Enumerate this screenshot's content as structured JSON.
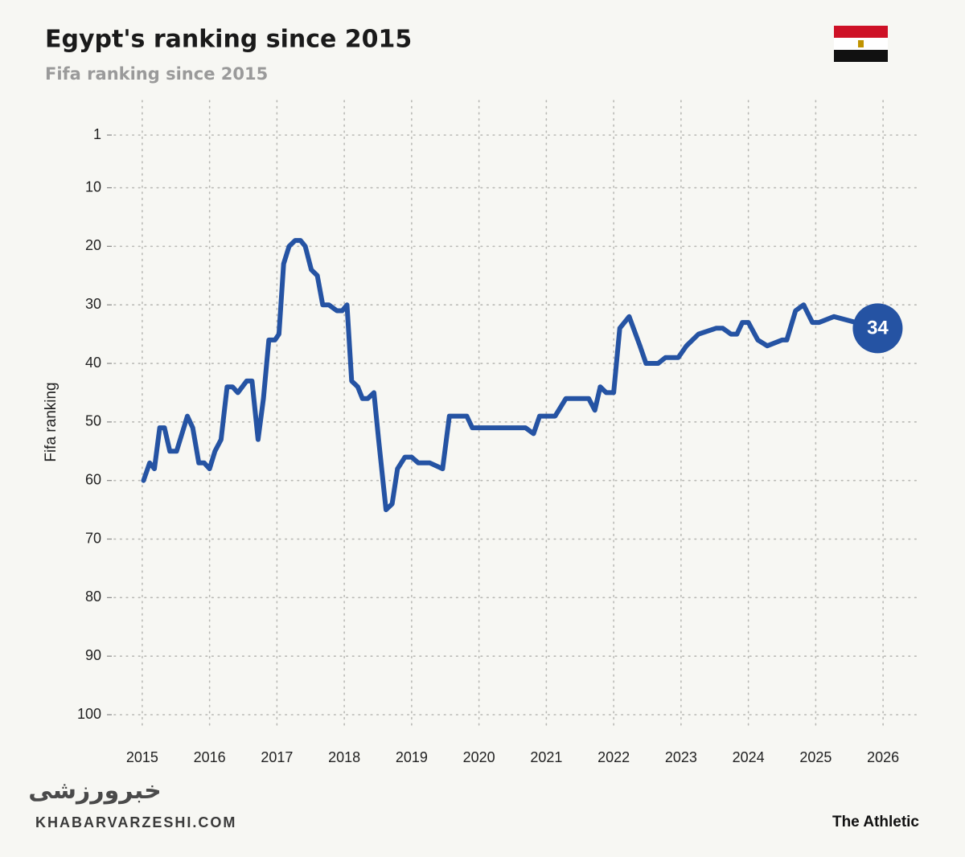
{
  "chart_data": {
    "type": "line",
    "title": "Egypt's ranking since 2015",
    "subtitle": "Fifa ranking since 2015",
    "y_label": "Fifa ranking",
    "y_reversed": true,
    "grid": true,
    "xlim": [
      2014.5,
      2026.5
    ],
    "xticks": [
      2015,
      2016,
      2017,
      2018,
      2019,
      2020,
      2021,
      2022,
      2023,
      2024,
      2025,
      2026
    ],
    "ylim": [
      1,
      100
    ],
    "yticks": [
      1,
      10,
      20,
      30,
      40,
      50,
      60,
      70,
      80,
      90,
      100
    ],
    "x": [
      2015.02,
      2015.11,
      2015.18,
      2015.26,
      2015.33,
      2015.41,
      2015.51,
      2015.67,
      2015.75,
      2015.84,
      2015.92,
      2016.0,
      2016.08,
      2016.17,
      2016.26,
      2016.34,
      2016.42,
      2016.55,
      2016.63,
      2016.72,
      2016.8,
      2016.88,
      2016.97,
      2017.03,
      2017.1,
      2017.18,
      2017.27,
      2017.35,
      2017.42,
      2017.51,
      2017.6,
      2017.68,
      2017.77,
      2017.89,
      2017.97,
      2018.04,
      2018.11,
      2018.2,
      2018.27,
      2018.35,
      2018.44,
      2018.51,
      2018.62,
      2018.71,
      2018.79,
      2018.9,
      2019.0,
      2019.1,
      2019.27,
      2019.46,
      2019.56,
      2019.65,
      2019.82,
      2019.9,
      2020.69,
      2020.81,
      2020.9,
      2021.13,
      2021.29,
      2021.55,
      2021.63,
      2021.72,
      2021.8,
      2021.89,
      2022.0,
      2022.09,
      2022.23,
      2022.39,
      2022.48,
      2022.66,
      2022.77,
      2022.96,
      2023.08,
      2023.26,
      2023.52,
      2023.62,
      2023.74,
      2023.83,
      2023.91,
      2024.0,
      2024.14,
      2024.28,
      2024.5,
      2024.57,
      2024.7,
      2024.82,
      2024.95,
      2025.05,
      2025.27,
      2025.92
    ],
    "series": [
      {
        "name": "Egypt",
        "color": "#2553a3",
        "values": [
          60,
          57,
          58,
          51,
          51,
          55,
          55,
          49,
          51,
          57,
          57,
          58,
          55,
          53,
          44,
          44,
          45,
          43,
          43,
          53,
          46,
          36,
          36,
          35,
          23,
          20,
          19,
          19,
          20,
          24,
          25,
          30,
          30,
          31,
          31,
          30,
          43,
          44,
          46,
          46,
          45,
          53,
          65,
          64,
          58,
          56,
          56,
          57,
          57,
          58,
          49,
          49,
          49,
          51,
          51,
          52,
          49,
          49,
          46,
          46,
          46,
          48,
          44,
          45,
          45,
          34,
          32,
          37,
          40,
          40,
          39,
          39,
          37,
          35,
          34,
          34,
          35,
          35,
          33,
          33,
          36,
          37,
          36,
          36,
          31,
          30,
          33,
          33,
          32,
          34
        ]
      }
    ],
    "watermark": "KHABARVARZESHI.COM",
    "watermark_logo": "خبرورزشی",
    "source": "The Athletic"
  }
}
